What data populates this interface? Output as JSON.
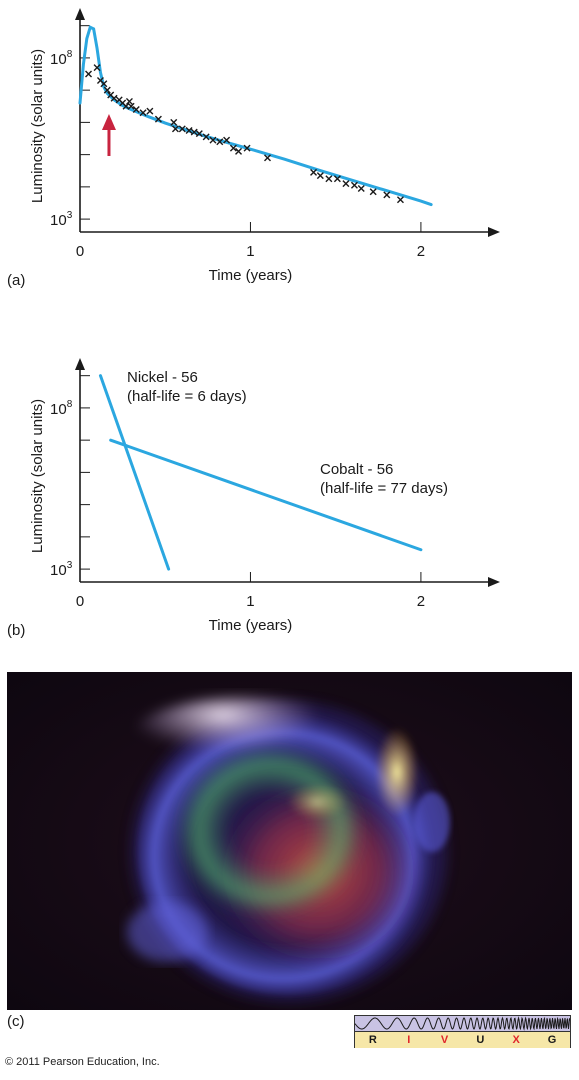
{
  "chart_data": [
    {
      "type": "scatter",
      "panel_label": "(a)",
      "xlabel": "Time (years)",
      "ylabel": "Luminosity (solar units)",
      "x_ticks": [
        "0",
        "1",
        "2"
      ],
      "y_ticks": [
        {
          "label": "10",
          "exponent": "8"
        },
        {
          "label": "10",
          "exponent": "3"
        }
      ],
      "xlim": [
        0,
        2.2
      ],
      "ylim": [
        2.6,
        9.3
      ],
      "y_scale": "log",
      "annotation": "red arrow marking the break in the light curve near 0.17 years",
      "arrow_color": "#c8243f",
      "curve_color": "#2ba7e0",
      "series": [
        {
          "kind": "observations",
          "x": [
            0.05,
            0.1,
            0.12,
            0.14,
            0.16,
            0.18,
            0.2,
            0.23,
            0.25,
            0.27,
            0.29,
            0.3,
            0.33,
            0.37,
            0.41,
            0.46,
            0.55,
            0.56,
            0.6,
            0.64,
            0.67,
            0.7,
            0.74,
            0.78,
            0.82,
            0.86,
            0.9,
            0.93,
            0.98,
            1.1,
            1.37,
            1.41,
            1.46,
            1.51,
            1.56,
            1.61,
            1.65,
            1.72,
            1.8,
            1.88
          ],
          "y": [
            7.5,
            7.7,
            7.3,
            7.2,
            7.0,
            6.85,
            6.75,
            6.7,
            6.6,
            6.5,
            6.65,
            6.5,
            6.4,
            6.3,
            6.35,
            6.1,
            6.0,
            5.8,
            5.8,
            5.75,
            5.7,
            5.65,
            5.55,
            5.45,
            5.4,
            5.45,
            5.2,
            5.1,
            5.2,
            4.9,
            4.45,
            4.35,
            4.25,
            4.25,
            4.1,
            4.05,
            3.95,
            3.85,
            3.75,
            3.6
          ]
        },
        {
          "kind": "model",
          "x": [
            0.0,
            0.02,
            0.04,
            0.06,
            0.08,
            0.1,
            0.12,
            0.14,
            0.16,
            0.18,
            0.2,
            0.25,
            0.3,
            0.4,
            0.5,
            0.6,
            0.7,
            0.8,
            0.9,
            1.0,
            1.2,
            1.4,
            1.6,
            1.8,
            2.0,
            2.06
          ],
          "y": [
            6.6,
            7.8,
            8.6,
            8.95,
            8.9,
            8.3,
            7.55,
            7.1,
            6.9,
            6.8,
            6.7,
            6.52,
            6.4,
            6.18,
            5.98,
            5.8,
            5.63,
            5.47,
            5.32,
            5.17,
            4.86,
            4.52,
            4.2,
            3.88,
            3.56,
            3.45
          ]
        }
      ]
    },
    {
      "type": "line",
      "panel_label": "(b)",
      "xlabel": "Time (years)",
      "ylabel": "Luminosity (solar units)",
      "x_ticks": [
        "0",
        "1",
        "2"
      ],
      "y_ticks": [
        {
          "label": "10",
          "exponent": "8"
        },
        {
          "label": "10",
          "exponent": "3"
        }
      ],
      "xlim": [
        0,
        2.2
      ],
      "ylim": [
        2.6,
        9.3
      ],
      "y_scale": "log",
      "curve_color": "#2ba7e0",
      "series": [
        {
          "name": "Nickel - 56",
          "note": "(half-life = 6 days)",
          "x": [
            0.12,
            0.52
          ],
          "y": [
            9.0,
            3.0
          ]
        },
        {
          "name": "Cobalt - 56",
          "note": "(half-life = 77 days)",
          "x": [
            0.18,
            2.0
          ],
          "y": [
            7.0,
            3.6
          ]
        }
      ]
    }
  ],
  "panel_c_label": "(c)",
  "spectrum_bands": [
    "R",
    "I",
    "V",
    "U",
    "X",
    "G"
  ],
  "highlighted_band_color": "#e0262b",
  "copyright": "© 2011 Pearson Education, Inc."
}
